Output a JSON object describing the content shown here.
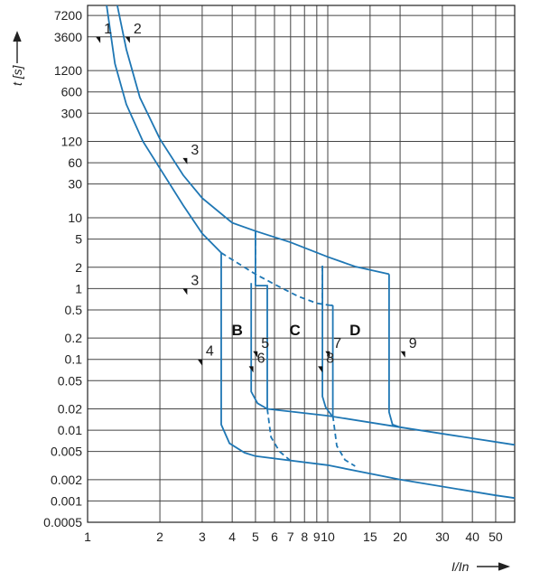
{
  "chart_data": {
    "type": "line",
    "x_axis": {
      "label": "I/In",
      "scale": "log",
      "range": [
        1,
        60
      ],
      "ticks": [
        1,
        2,
        3,
        4,
        5,
        6,
        7,
        8,
        9,
        10,
        15,
        20,
        30,
        40,
        50
      ]
    },
    "y_axis": {
      "label": "t [s]",
      "scale": "log",
      "range": [
        0.0005,
        10000
      ],
      "ticks": [
        0.0005,
        0.001,
        0.002,
        0.005,
        0.01,
        0.02,
        0.05,
        0.1,
        0.2,
        0.5,
        1,
        2,
        5,
        10,
        30,
        60,
        120,
        300,
        600,
        1200,
        3600,
        7200
      ]
    },
    "grid": true,
    "zones": [
      {
        "label": "B",
        "x": 4.2,
        "y": 0.26
      },
      {
        "label": "C",
        "x": 7.3,
        "y": 0.26
      },
      {
        "label": "D",
        "x": 13.0,
        "y": 0.26
      }
    ],
    "annotations": [
      {
        "label": "1",
        "x": 1.13,
        "y": 3600
      },
      {
        "label": "2",
        "x": 1.5,
        "y": 3600
      },
      {
        "label": "3",
        "x": 2.6,
        "y": 70
      },
      {
        "label": "3",
        "x": 2.6,
        "y": 1
      },
      {
        "label": "4",
        "x": 3.0,
        "y": 0.1
      },
      {
        "label": "5",
        "x": 5.1,
        "y": 0.13
      },
      {
        "label": "6",
        "x": 4.9,
        "y": 0.08
      },
      {
        "label": "7",
        "x": 10.2,
        "y": 0.13
      },
      {
        "label": "8",
        "x": 9.5,
        "y": 0.08
      },
      {
        "label": "9",
        "x": 21.0,
        "y": 0.13
      }
    ],
    "series": [
      {
        "style": "solid",
        "points": [
          [
            1.2,
            12000
          ],
          [
            1.3,
            1500
          ],
          [
            1.45,
            400
          ],
          [
            1.7,
            120
          ],
          [
            2.0,
            50
          ],
          [
            2.5,
            15
          ],
          [
            3.0,
            6
          ],
          [
            3.6,
            3.2
          ]
        ]
      },
      {
        "style": "dashed",
        "points": [
          [
            3.6,
            3.2
          ],
          [
            5.0,
            1.6
          ],
          [
            6.0,
            1.15
          ],
          [
            7.5,
            0.78
          ],
          [
            9.0,
            0.62
          ],
          [
            10.2,
            0.58
          ]
        ]
      },
      {
        "style": "solid",
        "points": [
          [
            10.2,
            0.58
          ],
          [
            10.5,
            0.58
          ]
        ]
      },
      {
        "style": "solid",
        "points": [
          [
            1.33,
            12000
          ],
          [
            1.45,
            2400
          ],
          [
            1.65,
            500
          ],
          [
            2.0,
            130
          ],
          [
            2.5,
            40
          ],
          [
            3.0,
            19
          ],
          [
            4.0,
            8.5
          ],
          [
            5.0,
            6.5
          ],
          [
            7.0,
            4.5
          ],
          [
            10.0,
            2.8
          ],
          [
            13.0,
            2.05
          ],
          [
            18.0,
            1.6
          ]
        ]
      },
      {
        "style": "solid",
        "points": [
          [
            3.6,
            3.2
          ],
          [
            3.6,
            0.012
          ],
          [
            3.9,
            0.0065
          ],
          [
            4.5,
            0.0048
          ],
          [
            5.0,
            0.0043
          ],
          [
            10.0,
            0.0032
          ],
          [
            20.0,
            0.002
          ],
          [
            50.0,
            0.0012
          ],
          [
            60.0,
            0.0011
          ]
        ]
      },
      {
        "style": "solid",
        "points": [
          [
            4.8,
            1.2
          ],
          [
            4.8,
            0.035
          ],
          [
            5.1,
            0.024
          ],
          [
            5.6,
            0.02
          ],
          [
            10.0,
            0.016
          ],
          [
            20.0,
            0.011
          ],
          [
            60.0,
            0.0062
          ]
        ]
      },
      {
        "style": "solid",
        "points": [
          [
            5.0,
            6.5
          ],
          [
            5.0,
            1.1
          ]
        ]
      },
      {
        "style": "solid",
        "points": [
          [
            5.0,
            1.1
          ],
          [
            5.6,
            1.1
          ],
          [
            5.6,
            0.02
          ]
        ]
      },
      {
        "style": "dashed",
        "points": [
          [
            5.0,
            6.5
          ],
          [
            5.0,
            1.1
          ]
        ]
      },
      {
        "style": "dashed",
        "points": [
          [
            5.6,
            0.02
          ],
          [
            5.8,
            0.008
          ],
          [
            6.3,
            0.005
          ],
          [
            7.0,
            0.0037
          ]
        ]
      },
      {
        "style": "solid",
        "points": [
          [
            9.5,
            2.1
          ],
          [
            9.5,
            0.03
          ],
          [
            9.8,
            0.021
          ],
          [
            10.4,
            0.016
          ]
        ]
      },
      {
        "style": "dashed",
        "points": [
          [
            9.5,
            2.1
          ],
          [
            9.5,
            0.6
          ]
        ]
      },
      {
        "style": "solid",
        "points": [
          [
            10.5,
            0.58
          ],
          [
            10.5,
            0.016
          ]
        ]
      },
      {
        "style": "dashed",
        "points": [
          [
            10.5,
            0.016
          ],
          [
            10.9,
            0.006
          ],
          [
            11.8,
            0.0038
          ],
          [
            13.0,
            0.0031
          ]
        ]
      },
      {
        "style": "solid",
        "points": [
          [
            18.0,
            1.6
          ],
          [
            18.0,
            0.018
          ],
          [
            18.6,
            0.012
          ],
          [
            20.0,
            0.011
          ]
        ]
      }
    ]
  }
}
